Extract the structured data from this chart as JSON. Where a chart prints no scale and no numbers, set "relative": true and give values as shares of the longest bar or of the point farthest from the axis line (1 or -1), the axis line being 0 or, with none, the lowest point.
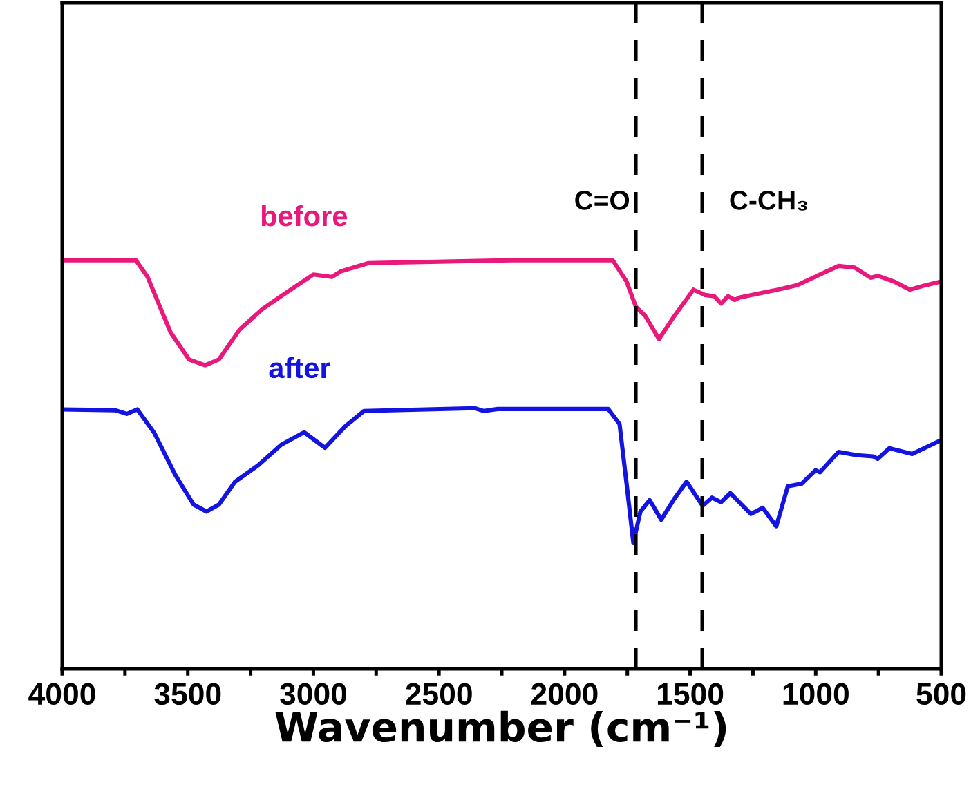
{
  "chart_data": {
    "type": "line",
    "relative": true,
    "xlabel": "Wavenumber (cm⁻¹)",
    "xlim": [
      4000,
      500
    ],
    "xticks": [
      4000,
      {
        "value": 3750,
        "label": null
      },
      3500,
      {
        "value": 3250,
        "label": null
      },
      3000,
      {
        "value": 2750,
        "label": null
      },
      2500,
      {
        "value": 2250,
        "label": null
      },
      2000,
      {
        "value": 1750,
        "label": null
      },
      1500,
      {
        "value": 1250,
        "label": null
      },
      1000,
      {
        "value": 750,
        "label": null
      },
      500
    ],
    "grid": false,
    "tick_labels": "x",
    "marker": "none",
    "line_style": "solid",
    "series": [
      {
        "name": "before",
        "color": "#e8197a",
        "x": [
          4000,
          3707,
          3660,
          3569,
          3495,
          3431,
          3376,
          3294,
          3202,
          3110,
          3000,
          2927,
          2890,
          2780,
          2211,
          1808,
          1753,
          1716,
          1679,
          1624,
          1569,
          1487,
          1441,
          1404,
          1377,
          1349,
          1322,
          1303,
          1166,
          1074,
          983,
          909,
          845,
          781,
          753,
          689,
          625,
          561,
          500
        ],
        "values": [
          1,
          1,
          0.959,
          0.824,
          0.757,
          0.743,
          0.757,
          0.83,
          0.881,
          0.92,
          0.965,
          0.959,
          0.973,
          0.993,
          1,
          1,
          0.948,
          0.886,
          0.864,
          0.807,
          0.858,
          0.928,
          0.915,
          0.912,
          0.894,
          0.912,
          0.903,
          0.909,
          0.926,
          0.939,
          0.965,
          0.986,
          0.982,
          0.957,
          0.962,
          0.948,
          0.928,
          0.939,
          0.948
        ]
      },
      {
        "name": "after",
        "color": "#1414e0",
        "x": [
          4000,
          3789,
          3743,
          3701,
          3633,
          3550,
          3477,
          3426,
          3376,
          3312,
          3220,
          3129,
          3037,
          2954,
          2872,
          2799,
          2358,
          2321,
          2266,
          1826,
          1781,
          1753,
          1726,
          1698,
          1661,
          1615,
          1560,
          1514,
          1450,
          1413,
          1377,
          1340,
          1258,
          1211,
          1157,
          1111,
          1056,
          1001,
          983,
          909,
          836,
          771,
          753,
          707,
          616,
          500
        ],
        "values": [
          0.635,
          0.633,
          0.624,
          0.635,
          0.577,
          0.475,
          0.402,
          0.385,
          0.402,
          0.458,
          0.498,
          0.548,
          0.579,
          0.541,
          0.594,
          0.631,
          0.638,
          0.631,
          0.636,
          0.636,
          0.599,
          0.453,
          0.308,
          0.385,
          0.413,
          0.365,
          0.419,
          0.458,
          0.399,
          0.419,
          0.408,
          0.43,
          0.379,
          0.394,
          0.349,
          0.447,
          0.453,
          0.486,
          0.481,
          0.531,
          0.523,
          0.52,
          0.514,
          0.54,
          0.526,
          0.56
        ]
      }
    ],
    "ref_lines": [
      {
        "axis": "x",
        "value": 1716,
        "label": "C=O",
        "color": "#000000",
        "line_style": "dashed"
      },
      {
        "axis": "x",
        "value": 1452,
        "label": "C-CH₃",
        "color": "#000000",
        "line_style": "dashed"
      }
    ]
  }
}
